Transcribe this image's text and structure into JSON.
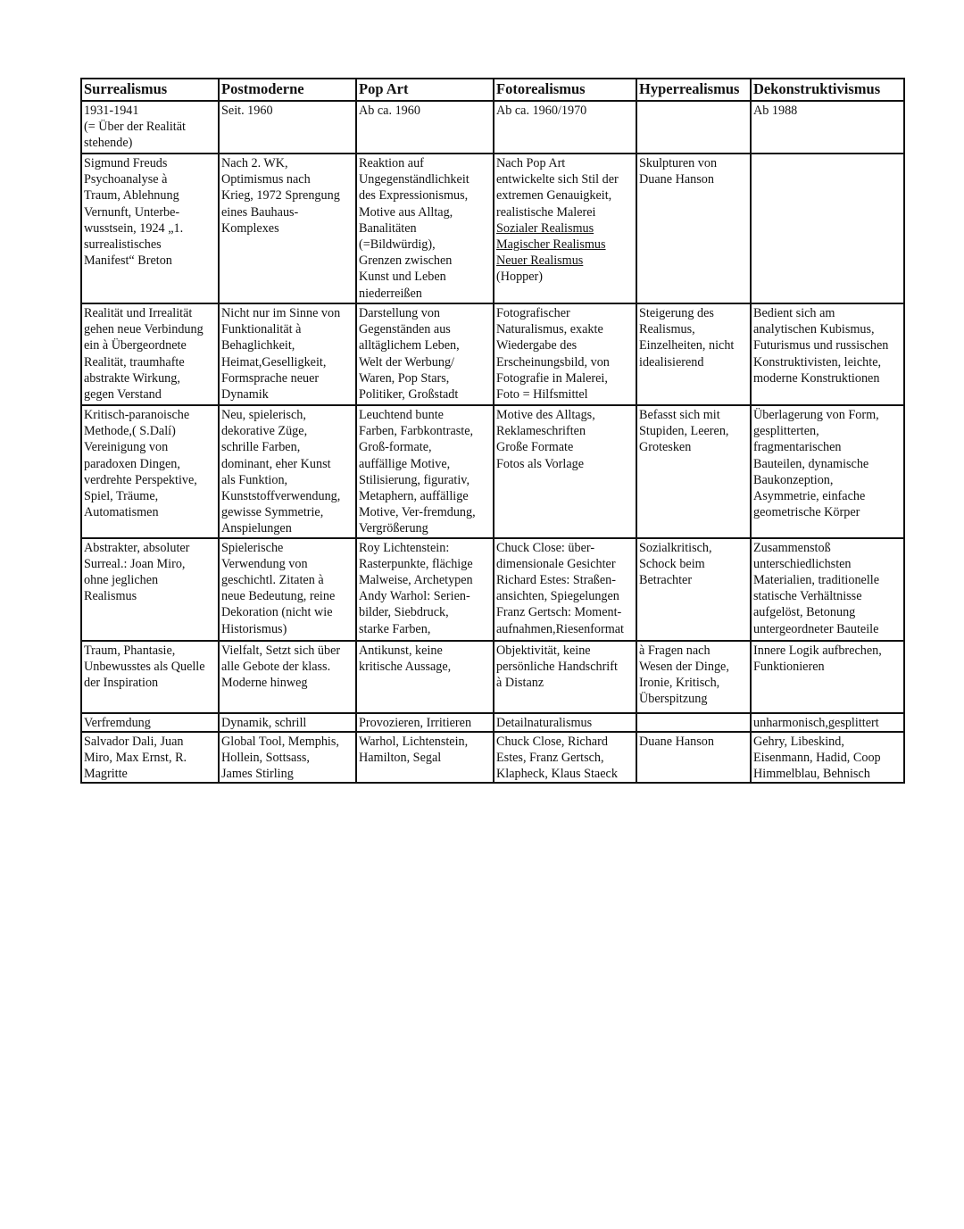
{
  "table": {
    "headers": [
      "Surrealismus",
      "Postmoderne",
      "Pop Art",
      "Fotorealismus",
      "Hyperrealismus",
      "Dekonstruktivismus"
    ],
    "rows": [
      [
        [
          "1931-1941",
          "(= Über der Realität",
          "stehende)"
        ],
        [
          "Seit. 1960"
        ],
        [
          "Ab ca. 1960"
        ],
        [
          "Ab ca. 1960/1970"
        ],
        [],
        [
          "Ab 1988"
        ]
      ],
      [
        [
          "Sigmund Freuds",
          "Psychoanalyse à",
          "Traum, Ablehnung",
          "Vernunft, Unterbe-",
          "wusstsein, 1924 „1.",
          "surrealistisches",
          "Manifest“ Breton"
        ],
        [
          "Nach 2. WK,",
          "Optimismus nach",
          "Krieg, 1972 Sprengung",
          "eines Bauhaus-",
          "Komplexes"
        ],
        [
          "Reaktion auf",
          "Ungegenständlichkeit",
          "des Expressionismus,",
          "Motive aus Alltag,",
          "Banalitäten",
          "(=Bildwürdig),",
          "Grenzen zwischen",
          "Kunst und Leben",
          "niederreißen"
        ],
        [
          "Nach Pop Art",
          "entwickelte sich Stil der",
          "extremen Genauigkeit,",
          "realistische Malerei",
          {
            "text": "Sozialer Realismus",
            "underline": true
          },
          {
            "text": "Magischer Realismus",
            "underline": true
          },
          {
            "text": "Neuer Realismus",
            "underline": true
          },
          "(Hopper)"
        ],
        [
          "Skulpturen von",
          "Duane Hanson"
        ],
        []
      ],
      [
        [
          "Realität und Irrealität",
          "gehen neue Verbindung",
          "ein à Übergeordnete",
          "Realität, traumhafte",
          "abstrakte Wirkung,",
          "gegen Verstand"
        ],
        [
          "Nicht nur im Sinne von",
          "Funktionalität à",
          "Behaglichkeit,",
          "Heimat,Geselligkeit,",
          "Formsprache neuer",
          "Dynamik"
        ],
        [
          "Darstellung von",
          "Gegenständen aus",
          "alltäglichem Leben,",
          "Welt der Werbung/",
          "Waren, Pop Stars,",
          "Politiker, Großstadt"
        ],
        [
          "Fotografischer",
          "Naturalismus, exakte",
          "Wiedergabe des",
          "Erscheinungsbild, von",
          "Fotografie in Malerei,",
          "Foto = Hilfsmittel"
        ],
        [
          "Steigerung des",
          "Realismus,",
          "Einzelheiten, nicht",
          "idealisierend"
        ],
        [
          "Bedient sich am",
          "analytischen Kubismus,",
          "Futurismus und russischen",
          "Konstruktivisten, leichte,",
          "moderne Konstruktionen"
        ]
      ],
      [
        [
          "Kritisch-paranoische",
          "Methode,( S.Dalí)",
          "Vereinigung von",
          "paradoxen Dingen,",
          "verdrehte Perspektive,",
          "Spiel, Träume,",
          "Automatismen"
        ],
        [
          "Neu, spielerisch,",
          "dekorative Züge,",
          "schrille Farben,",
          "dominant, eher Kunst",
          "als Funktion,",
          "Kunststoffverwendung,",
          "gewisse Symmetrie,",
          "Anspielungen"
        ],
        [
          "Leuchtend bunte",
          "Farben, Farbkontraste,",
          "Groß-formate,",
          "auffällige Motive,",
          "Stilisierung, figurativ,",
          "Metaphern, auffällige",
          "Motive, Ver-fremdung,",
          "Vergrößerung"
        ],
        [
          "Motive des Alltags,",
          "Reklameschriften",
          "Große Formate",
          "Fotos als Vorlage"
        ],
        [
          "Befasst sich mit",
          "Stupiden, Leeren,",
          "Grotesken"
        ],
        [
          "Überlagerung von Form,",
          "gesplitterten,",
          "fragmentarischen",
          "Bauteilen, dynamische",
          "Baukonzeption,",
          "Asymmetrie, einfache",
          "geometrische Körper"
        ]
      ],
      [
        [
          "Abstrakter, absoluter",
          "Surreal.: Joan Miro,",
          "ohne jeglichen",
          "Realismus"
        ],
        [
          "Spielerische",
          "Verwendung von",
          "geschichtl. Zitaten à",
          "neue Bedeutung, reine",
          "Dekoration (nicht wie",
          "Historismus)"
        ],
        [
          "Roy Lichtenstein:",
          "Rasterpunkte, flächige",
          "Malweise, Archetypen",
          "Andy Warhol: Serien-",
          "bilder, Siebdruck,",
          "starke Farben,"
        ],
        [
          "Chuck Close: über-",
          "dimensionale Gesichter",
          "Richard Estes: Straßen-",
          "ansichten, Spiegelungen",
          "Franz Gertsch: Moment-",
          "aufnahmen,Riesenformat"
        ],
        [
          "Sozialkritisch,",
          "Schock beim",
          "Betrachter"
        ],
        [
          "Zusammenstoß",
          "unterschiedlichsten",
          "Materialien, traditionelle",
          "statische Verhältnisse",
          "aufgelöst, Betonung",
          "untergeordneter Bauteile"
        ]
      ],
      [
        [
          "Traum, Phantasie,",
          "Unbewusstes als Quelle",
          "der Inspiration"
        ],
        [
          "Vielfalt, Setzt sich über",
          "alle Gebote der klass.",
          "Moderne hinweg"
        ],
        [
          "Antikunst, keine",
          "kritische Aussage,"
        ],
        [
          "Objektivität, keine",
          "persönliche Handschrift",
          "à Distanz"
        ],
        [
          "à Fragen nach",
          "Wesen der Dinge,",
          "Ironie, Kritisch,",
          "Überspitzung"
        ],
        [
          "Innere Logik aufbrechen,",
          "Funktionieren"
        ]
      ],
      [
        [
          "Verfremdung"
        ],
        [
          "Dynamik, schrill"
        ],
        [
          "Provozieren, Irritieren"
        ],
        [
          "Detailnaturalismus"
        ],
        [],
        [
          "unharmonisch,gesplittert"
        ]
      ],
      [
        [
          "Salvador Dali, Juan",
          "Miro, Max Ernst, R.",
          "Magritte"
        ],
        [
          "Global Tool, Memphis,",
          "Hollein, Sottsass,",
          "James Stirling"
        ],
        [
          "Warhol, Lichtenstein,",
          "Hamilton, Segal"
        ],
        [
          "Chuck Close, Richard",
          "Estes, Franz Gertsch,",
          "Klapheck, Klaus Staeck"
        ],
        [
          "Duane Hanson"
        ],
        [
          "Gehry, Libeskind,",
          "Eisenmann, Hadid, Coop",
          "Himmelblau, Behnisch"
        ]
      ]
    ]
  }
}
